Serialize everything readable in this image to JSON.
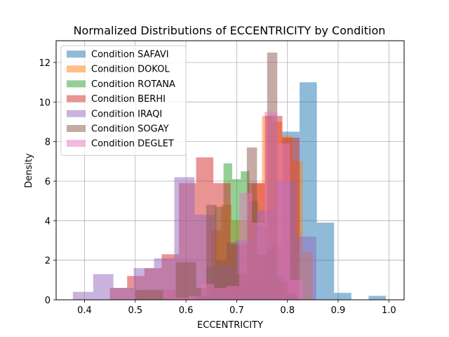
{
  "chart_data": {
    "type": "bar",
    "chart_kind": "histogram",
    "title": "Normalized Distributions of ECCENTRICITY by Condition",
    "xlabel": "ECCENTRICITY",
    "ylabel": "Density",
    "xlim": [
      0.344,
      1.03
    ],
    "ylim": [
      0,
      13.1
    ],
    "xticks": [
      0.4,
      0.5,
      0.6,
      0.7,
      0.8,
      0.9,
      1.0
    ],
    "xtick_labels": [
      "0.4",
      "0.5",
      "0.6",
      "0.7",
      "0.8",
      "0.9",
      "1.0"
    ],
    "yticks": [
      0,
      2,
      4,
      6,
      8,
      10,
      12
    ],
    "ytick_labels": [
      "0",
      "2",
      "4",
      "6",
      "8",
      "10",
      "12"
    ],
    "grid": true,
    "legend_position": "top-left",
    "alpha": 0.5,
    "series": [
      {
        "name": "Condition SAFAVI",
        "color": "#1f77b4",
        "edges": [
          0.62,
          0.654,
          0.688,
          0.722,
          0.756,
          0.79,
          0.824,
          0.858,
          0.892,
          0.926,
          0.96,
          0.994
        ],
        "values": [
          0.2,
          0.3,
          0.5,
          1.2,
          2.7,
          8.5,
          11.0,
          3.9,
          0.35,
          0,
          0.2
        ]
      },
      {
        "name": "Condition DOKOL",
        "color": "#ff7f0e",
        "edges": [
          0.63,
          0.65,
          0.67,
          0.69,
          0.71,
          0.73,
          0.75,
          0.77,
          0.79,
          0.81,
          0.83,
          0.85
        ],
        "values": [
          0.2,
          3.5,
          4.8,
          4.0,
          4.0,
          5.9,
          9.3,
          9.0,
          8.3,
          7.0,
          2.4
        ]
      },
      {
        "name": "Condition ROTANA",
        "color": "#2ca02c",
        "edges": [
          0.64,
          0.657,
          0.674,
          0.691,
          0.708,
          0.725,
          0.742,
          0.759,
          0.776,
          0.793,
          0.81
        ],
        "values": [
          1.7,
          4.7,
          6.9,
          6.1,
          6.5,
          5.0,
          3.7,
          2.5,
          1.2,
          0.3
        ]
      },
      {
        "name": "Condition BERHI",
        "color": "#d62728",
        "edges": [
          0.45,
          0.484,
          0.518,
          0.552,
          0.586,
          0.62,
          0.654,
          0.688,
          0.722,
          0.756,
          0.79,
          0.824
        ],
        "values": [
          0.6,
          1.2,
          1.6,
          2.3,
          5.9,
          7.2,
          5.9,
          2.8,
          5.9,
          9.3,
          8.2
        ]
      },
      {
        "name": "Condition IRAQI",
        "color": "#9467bd",
        "edges": [
          0.377,
          0.417,
          0.457,
          0.497,
          0.537,
          0.577,
          0.617,
          0.657,
          0.697,
          0.737,
          0.777,
          0.817,
          0.857
        ],
        "values": [
          0.4,
          1.3,
          0.6,
          1.6,
          2.1,
          6.2,
          4.3,
          1.7,
          3.0,
          4.5,
          6.0,
          3.2
        ]
      },
      {
        "name": "Condition SOGAY",
        "color": "#8c564b",
        "edges": [
          0.5,
          0.52,
          0.54,
          0.56,
          0.58,
          0.6,
          0.62,
          0.64,
          0.66,
          0.68,
          0.7,
          0.72,
          0.74,
          0.76,
          0.78,
          0.8,
          0.82
        ],
        "values": [
          0.5,
          0.5,
          0.5,
          0.5,
          1.9,
          1.9,
          0.6,
          4.8,
          2.0,
          2.9,
          1.3,
          7.7,
          2.3,
          12.5,
          0.9,
          0.3
        ]
      },
      {
        "name": "Condition DEGLET",
        "color": "#e377c2",
        "edges": [
          0.555,
          0.58,
          0.605,
          0.63,
          0.655,
          0.68,
          0.705,
          0.73,
          0.755,
          0.78,
          0.805,
          0.83
        ],
        "values": [
          0.5,
          0.1,
          0.2,
          0.8,
          0.6,
          0.7,
          5.4,
          3.9,
          9.5,
          7.9,
          1.0
        ]
      }
    ]
  }
}
